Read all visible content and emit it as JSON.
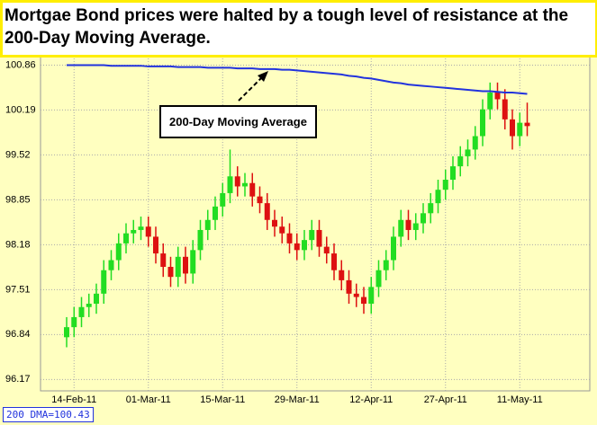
{
  "chart_data": {
    "type": "candlestick",
    "title": "Mortgae Bond prices were halted by a tough level of resistance at the 200-Day Moving Average.",
    "annotation": "200-Day Moving Average",
    "footer_label": "200 DMA=100.43",
    "categories": [
      null,
      "14-Feb-11",
      null,
      null,
      null,
      null,
      null,
      null,
      null,
      null,
      null,
      "01-Mar-11",
      null,
      null,
      null,
      null,
      null,
      null,
      null,
      null,
      null,
      "15-Mar-11",
      null,
      null,
      null,
      null,
      null,
      null,
      null,
      null,
      null,
      "29-Mar-11",
      null,
      null,
      null,
      null,
      null,
      null,
      null,
      null,
      null,
      "12-Apr-11",
      null,
      null,
      null,
      null,
      null,
      null,
      null,
      null,
      null,
      "27-Apr-11",
      null,
      null,
      null,
      null,
      null,
      null,
      null,
      null,
      null,
      "11-May-11",
      null
    ],
    "open": [
      96.8,
      96.95,
      97.1,
      97.25,
      97.3,
      97.45,
      97.8,
      97.95,
      98.2,
      98.35,
      98.4,
      98.45,
      98.3,
      98.05,
      97.85,
      97.7,
      98.0,
      97.75,
      98.1,
      98.4,
      98.55,
      98.75,
      98.95,
      99.2,
      99.05,
      99.1,
      98.9,
      98.8,
      98.55,
      98.45,
      98.35,
      98.2,
      98.1,
      98.25,
      98.4,
      98.15,
      98.05,
      97.8,
      97.65,
      97.45,
      97.4,
      97.3,
      97.55,
      97.8,
      97.95,
      98.3,
      98.55,
      98.4,
      98.5,
      98.65,
      98.8,
      99.0,
      99.15,
      99.35,
      99.5,
      99.6,
      99.8,
      100.2,
      100.45,
      100.35,
      100.05,
      99.8,
      100.0
    ],
    "high": [
      97.1,
      97.25,
      97.4,
      97.45,
      97.6,
      97.95,
      98.1,
      98.35,
      98.5,
      98.55,
      98.6,
      98.6,
      98.45,
      98.2,
      98.0,
      98.15,
      98.15,
      98.25,
      98.55,
      98.7,
      98.9,
      99.1,
      99.6,
      99.35,
      99.25,
      99.25,
      99.05,
      98.95,
      98.7,
      98.6,
      98.5,
      98.35,
      98.4,
      98.55,
      98.55,
      98.3,
      98.2,
      97.95,
      97.8,
      97.6,
      97.55,
      97.7,
      97.95,
      98.1,
      98.45,
      98.7,
      98.7,
      98.65,
      98.8,
      98.95,
      99.15,
      99.3,
      99.5,
      99.65,
      99.75,
      99.95,
      100.35,
      100.6,
      100.6,
      100.5,
      100.2,
      100.15,
      100.3
    ],
    "low": [
      96.65,
      96.8,
      96.95,
      97.1,
      97.15,
      97.3,
      97.65,
      97.8,
      98.05,
      98.2,
      98.25,
      98.15,
      97.9,
      97.7,
      97.55,
      97.55,
      97.6,
      97.6,
      97.95,
      98.25,
      98.4,
      98.6,
      98.8,
      98.9,
      98.9,
      98.75,
      98.65,
      98.4,
      98.3,
      98.2,
      98.05,
      97.95,
      97.95,
      98.1,
      98.0,
      97.9,
      97.65,
      97.5,
      97.3,
      97.25,
      97.15,
      97.15,
      97.4,
      97.65,
      97.8,
      98.15,
      98.25,
      98.25,
      98.35,
      98.5,
      98.65,
      98.85,
      99.0,
      99.2,
      99.35,
      99.45,
      99.65,
      100.05,
      100.2,
      99.9,
      99.6,
      99.65,
      99.8
    ],
    "close": [
      96.95,
      97.1,
      97.25,
      97.3,
      97.45,
      97.8,
      97.95,
      98.2,
      98.35,
      98.4,
      98.45,
      98.3,
      98.05,
      97.85,
      97.7,
      98.0,
      97.75,
      98.1,
      98.4,
      98.55,
      98.75,
      98.95,
      99.2,
      99.05,
      99.1,
      98.9,
      98.8,
      98.55,
      98.45,
      98.35,
      98.2,
      98.1,
      98.25,
      98.4,
      98.15,
      98.05,
      97.8,
      97.65,
      97.45,
      97.4,
      97.3,
      97.55,
      97.8,
      97.95,
      98.3,
      98.55,
      98.4,
      98.5,
      98.65,
      98.8,
      99.0,
      99.15,
      99.35,
      99.5,
      99.6,
      99.8,
      100.2,
      100.45,
      100.35,
      100.05,
      99.8,
      100.0,
      99.95
    ],
    "up_color": "#22dd22",
    "down_color": "#dd1111",
    "moving_average": {
      "color": "#2233dd",
      "values": [
        100.86,
        100.86,
        100.86,
        100.86,
        100.86,
        100.86,
        100.85,
        100.85,
        100.85,
        100.85,
        100.85,
        100.84,
        100.84,
        100.84,
        100.84,
        100.83,
        100.83,
        100.83,
        100.83,
        100.82,
        100.82,
        100.82,
        100.82,
        100.81,
        100.81,
        100.81,
        100.8,
        100.8,
        100.8,
        100.79,
        100.79,
        100.78,
        100.77,
        100.76,
        100.75,
        100.74,
        100.73,
        100.72,
        100.7,
        100.69,
        100.67,
        100.66,
        100.64,
        100.62,
        100.6,
        100.59,
        100.57,
        100.56,
        100.55,
        100.54,
        100.53,
        100.52,
        100.51,
        100.5,
        100.49,
        100.48,
        100.47,
        100.47,
        100.46,
        100.45,
        100.45,
        100.44,
        100.43
      ]
    },
    "ylim": [
      96.0,
      101.0
    ],
    "yticks": [
      96.17,
      96.84,
      97.51,
      98.18,
      98.85,
      99.52,
      100.19,
      100.86
    ],
    "grid": true
  }
}
